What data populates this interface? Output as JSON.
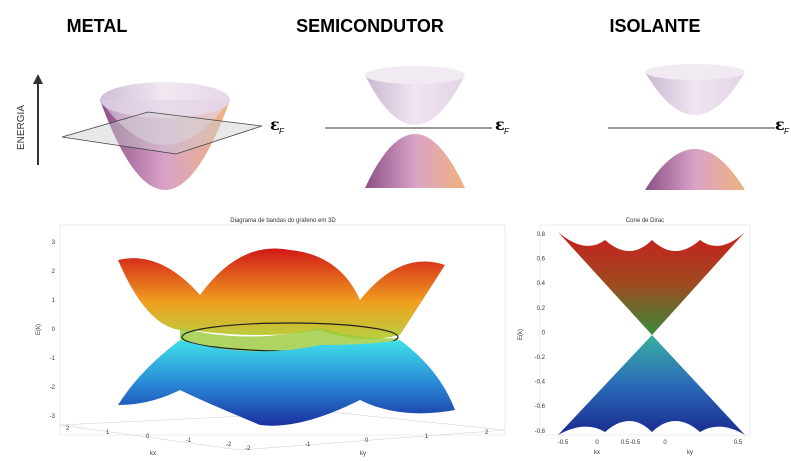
{
  "header": {
    "titles": [
      "METAL",
      "SEMICONDUTOR",
      "ISOLANTE"
    ]
  },
  "energy_axis_label": "ENERGIA",
  "fermi_labels": [
    {
      "symbol": "ε",
      "subscript": "F"
    },
    {
      "symbol": "ε",
      "subscript": "F"
    },
    {
      "symbol": "ε",
      "subscript": "F"
    }
  ],
  "graphene_plot": {
    "title": "Diagrama de bandas do grafeno em 3D",
    "y_label": "E(k)",
    "y_ticks": [
      "3",
      "2",
      "1",
      "0",
      "-1",
      "-2",
      "-3"
    ],
    "x_ticks_left": [
      "2",
      "1",
      "0",
      "-1",
      "-2"
    ],
    "x_ticks_right": [
      "-2",
      "-1",
      "0",
      "1",
      "2"
    ],
    "x_label_left": "kx",
    "x_label_right": "ky"
  },
  "dirac_plot": {
    "title": "Cone de Dirac",
    "y_label": "E(k)",
    "y_ticks": [
      "0.8",
      "0.6",
      "0.4",
      "0.2",
      "0",
      "-0.2",
      "-0.4",
      "-0.6",
      "-0.8"
    ],
    "x_ticks": [
      "-0.5",
      "0",
      "0.5",
      "-0.5",
      "0",
      "0.5"
    ],
    "x_labels": [
      "kx",
      "ky"
    ]
  }
}
